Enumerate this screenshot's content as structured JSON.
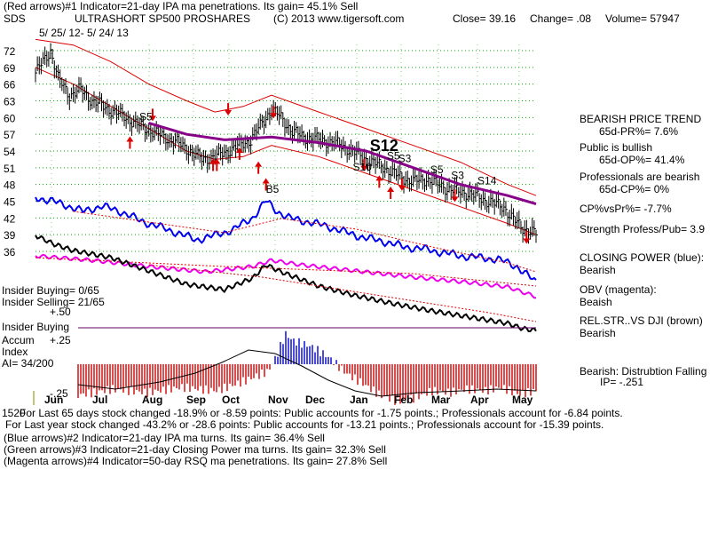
{
  "header": {
    "line1": "(Red arrows)#1 Indicator=21-day IPA ma penetrations. Its gain= 45.1% Sell",
    "symbol": "SDS",
    "name": "ULTRASHORT SP500 PROSHARES",
    "copyright": "(C) 2013 www.tigersoft.com",
    "close": "Close=  39.16",
    "change": "Change= .08",
    "volume": "Volume= 57947",
    "date_range": "5/ 25/ 12- 5/ 24/ 13"
  },
  "right_panel": {
    "bearish_price_trend": "BEARISH PRICE TREND",
    "pr": "65d-PR%= 7.6%",
    "public_bullish": "Public is bullish",
    "op": "65d-OP%= 41.4%",
    "pros_bearish": "Professionals are bearish",
    "cp": "65d-CP%= 0%",
    "cpvspr": "CP%vsPr%= -7.7%",
    "strength": "Strength Profess/Pub= 3.9",
    "closing_power_label": "CLOSING POWER (blue):",
    "closing_power_value": "Bearish",
    "obv_label": "OBV (magenta):",
    "obv_value": "Beaish",
    "relstr_label": "REL.STR..VS DJI (brown)",
    "relstr_value": "Bearish",
    "distribution": "Bearish: Distrubtion Falling",
    "ip": "IP= -.251"
  },
  "left_panel": {
    "insider_buying_count": "Insider Buying= 0/65",
    "insider_selling_count": "Insider Selling= 21/65",
    "insider_buying_label": "Insider Buying",
    "accum_label": "Accum",
    "index_label": "Index",
    "ai": "AI= 34/200",
    "p50": "+.50",
    "p25": "+.25",
    "m25": "-.25",
    "leftover": "1520"
  },
  "footer": {
    "line1": "For Last 65 days stock changed -18.9% or -8.59 points:  Public accounts for -1.75 points.;  Professionals account for -6.84 points.",
    "line2": "For Last year stock changed -43.2% or -28.6 points:  Public accounts for -13.21 points.;  Professionals account for -15.39 points.",
    "line3": "(Blue arrows)#2 Indicator=21-day IPA ma turns. Its gain= 36.4% Sell",
    "line4": "(Green arrows)#3 Indicator=21-day Closing Power ma turns. Its gain= 32.3% Sell",
    "line5": "(Magenta arrows)#4 Indicator=50-day RSQ ma penetrations. Its gain= 27.8% Sell"
  },
  "colors": {
    "grid": "#00aa00",
    "price": "#000000",
    "envelope": "#dd0000",
    "ma": "#880088",
    "closing_power": "#0000ee",
    "obv": "#ee00ee",
    "relstr": "#000000",
    "accum_pos": "#0000cc",
    "accum_neg": "#cc0000",
    "signal": "#000000",
    "arrow": "#dd0000"
  },
  "chart_data": {
    "type": "line",
    "title": "SDS ULTRASHORT SP500 PROSHARES",
    "x_months": [
      "Jun",
      "Jul",
      "Aug",
      "Sep",
      "Oct",
      "Nov",
      "Dec",
      "Jan",
      "Feb",
      "Mar",
      "Apr",
      "May"
    ],
    "y_ticks": [
      72,
      69,
      66,
      63,
      60,
      57,
      54,
      51,
      48,
      45,
      42,
      39,
      36
    ],
    "ylim": [
      36,
      72
    ],
    "price": [
      [
        0,
        68
      ],
      [
        4,
        70
      ],
      [
        8,
        72
      ],
      [
        12,
        67
      ],
      [
        18,
        64
      ],
      [
        24,
        65
      ],
      [
        30,
        63
      ],
      [
        36,
        62
      ],
      [
        42,
        61
      ],
      [
        48,
        60
      ],
      [
        55,
        58.5
      ],
      [
        62,
        57.5
      ],
      [
        68,
        56.5
      ],
      [
        75,
        55.5
      ],
      [
        82,
        54
      ],
      [
        88,
        52.5
      ],
      [
        95,
        53
      ],
      [
        102,
        54
      ],
      [
        108,
        55
      ],
      [
        114,
        56
      ],
      [
        118,
        58
      ],
      [
        122,
        60
      ],
      [
        125,
        61.5
      ],
      [
        130,
        60
      ],
      [
        136,
        57.5
      ],
      [
        142,
        56.5
      ],
      [
        150,
        56
      ],
      [
        158,
        55.5
      ],
      [
        165,
        54.5
      ],
      [
        170,
        53.5
      ],
      [
        178,
        52
      ],
      [
        185,
        51
      ],
      [
        192,
        49.5
      ],
      [
        200,
        48.5
      ],
      [
        207,
        49
      ],
      [
        213,
        48
      ],
      [
        220,
        47
      ],
      [
        228,
        46.5
      ],
      [
        236,
        45.5
      ],
      [
        243,
        44.5
      ],
      [
        248,
        44
      ],
      [
        252,
        42
      ],
      [
        257,
        40.5
      ],
      [
        262,
        39.5
      ],
      [
        265,
        39.16
      ]
    ],
    "ma50": [
      [
        60,
        59
      ],
      [
        80,
        57
      ],
      [
        100,
        56
      ],
      [
        125,
        56.5
      ],
      [
        150,
        55.5
      ],
      [
        175,
        54
      ],
      [
        200,
        51
      ],
      [
        225,
        48
      ],
      [
        250,
        46
      ],
      [
        265,
        44.5
      ]
    ],
    "upper_band": [
      [
        0,
        74
      ],
      [
        20,
        73
      ],
      [
        40,
        70
      ],
      [
        60,
        66
      ],
      [
        80,
        63
      ],
      [
        95,
        61
      ],
      [
        110,
        62
      ],
      [
        125,
        64
      ],
      [
        150,
        61
      ],
      [
        175,
        58
      ],
      [
        200,
        55
      ],
      [
        225,
        52
      ],
      [
        250,
        48
      ],
      [
        265,
        46
      ]
    ],
    "lower_band": [
      [
        0,
        69
      ],
      [
        20,
        66
      ],
      [
        40,
        62
      ],
      [
        60,
        58
      ],
      [
        80,
        54
      ],
      [
        95,
        52.5
      ],
      [
        110,
        53
      ],
      [
        125,
        55
      ],
      [
        150,
        53
      ],
      [
        175,
        50
      ],
      [
        200,
        47
      ],
      [
        225,
        44
      ],
      [
        250,
        41
      ],
      [
        265,
        39
      ]
    ],
    "closing_power_label": "CLOSING POWER (blue)",
    "obv_label": "OBV (magenta)",
    "relstr_label": "REL.STR..VS DJI (brown)",
    "accum_label": "Accum Index",
    "signals": [
      {
        "text": "S5",
        "day": 55,
        "price": 59.5,
        "size": "small"
      },
      {
        "text": "B5",
        "day": 122,
        "price": 46.5,
        "size": "small"
      },
      {
        "text": "S12",
        "day": 177,
        "price": 54,
        "size": "large"
      },
      {
        "text": "S10",
        "day": 168,
        "price": 50.5,
        "size": "small"
      },
      {
        "text": "S5",
        "day": 186,
        "price": 52.5,
        "size": "small"
      },
      {
        "text": "S3",
        "day": 192,
        "price": 52,
        "size": "small"
      },
      {
        "text": "S5",
        "day": 209,
        "price": 50,
        "size": "small"
      },
      {
        "text": "S3",
        "day": 220,
        "price": 49,
        "size": "small"
      },
      {
        "text": "S14",
        "day": 234,
        "price": 48,
        "size": "small"
      }
    ]
  }
}
